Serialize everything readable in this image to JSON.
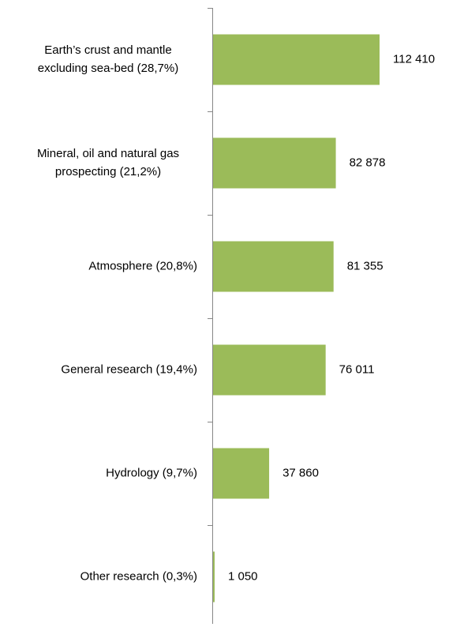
{
  "chart_data": {
    "type": "bar",
    "orientation": "horizontal",
    "categories": [
      [
        "Earth’s crust and mantle",
        "excluding sea-bed (28,7%)"
      ],
      [
        "Mineral, oil and natural gas",
        "prospecting (21,2%)"
      ],
      [
        "Atmosphere (20,8%)"
      ],
      [
        "General research (19,4%)"
      ],
      [
        "Hydrology (9,7%)"
      ],
      [
        "Other research (0,3%)"
      ]
    ],
    "values": [
      112410,
      82878,
      81355,
      76011,
      37860,
      1050
    ],
    "value_labels": [
      "112 410",
      "82 878",
      "81 355",
      "76 011",
      "37 860",
      "1 050"
    ],
    "color": "#9bbb59"
  }
}
